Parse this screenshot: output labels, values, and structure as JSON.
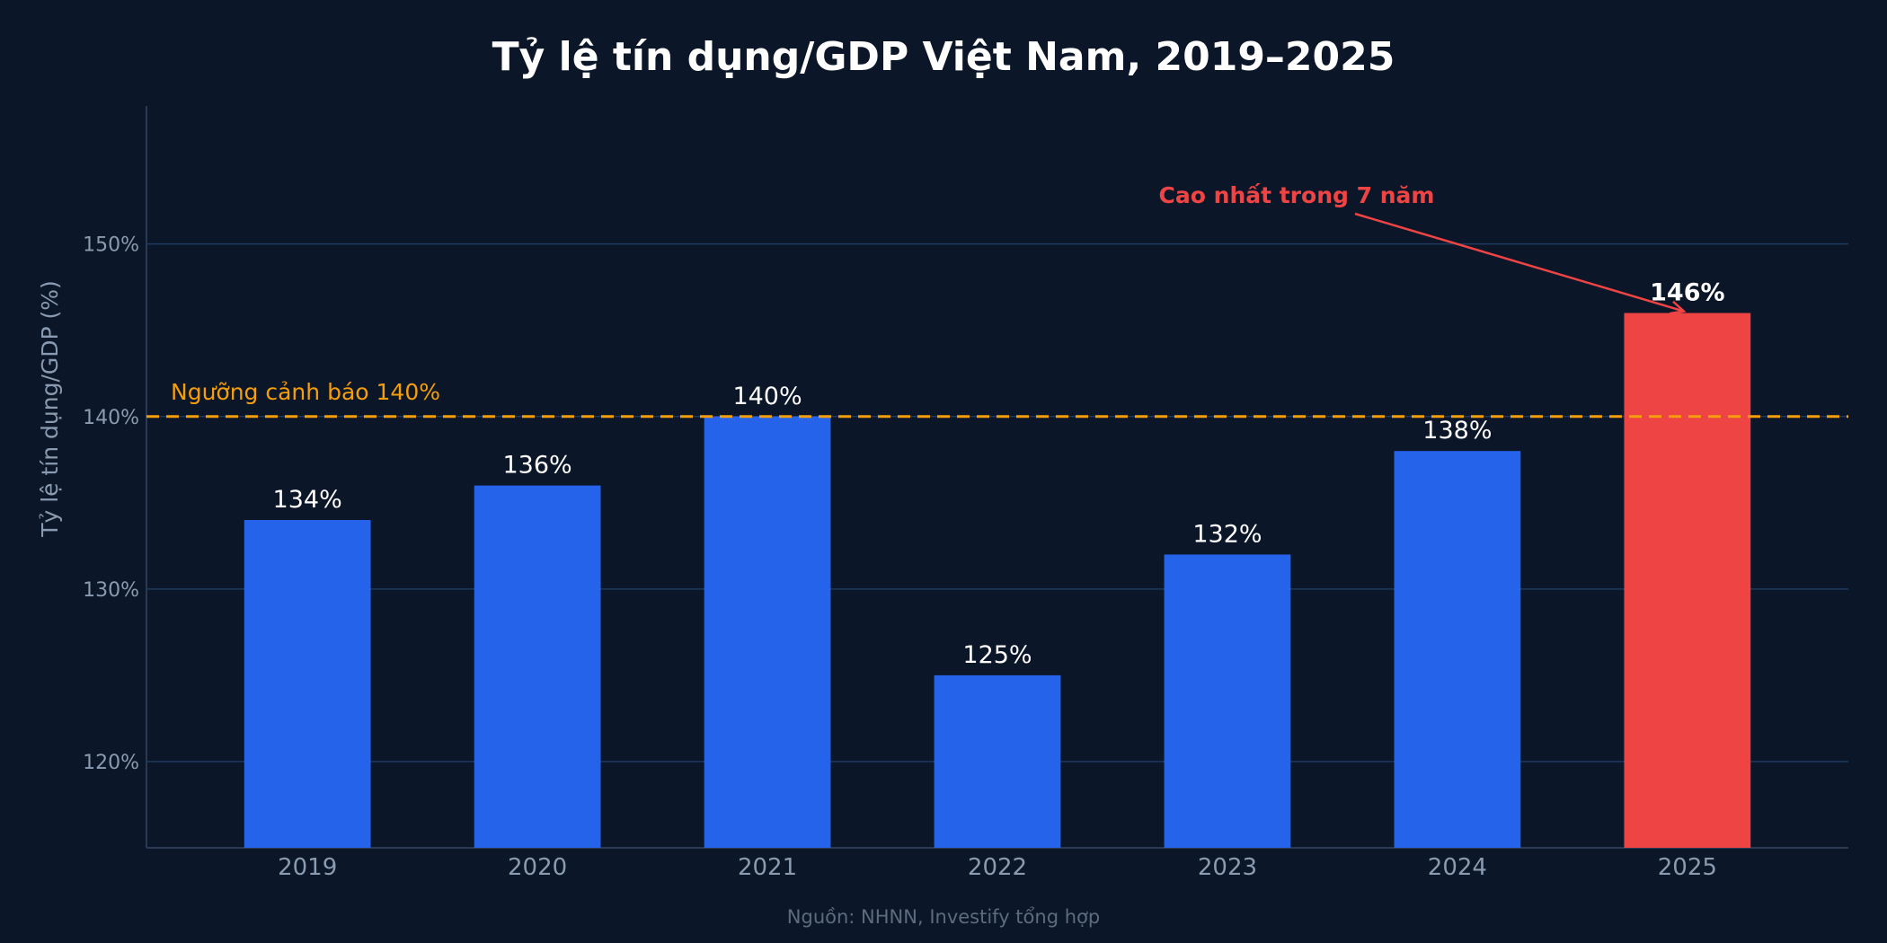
{
  "chart_data": {
    "type": "bar",
    "title": "Tỷ lệ tín dụng/GDP Việt Nam, 2019–2025",
    "xlabel": "",
    "ylabel": "Tỷ lệ tín dụng/GDP (%)",
    "categories": [
      "2019",
      "2020",
      "2021",
      "2022",
      "2023",
      "2024",
      "2025"
    ],
    "values": [
      134,
      136,
      140,
      125,
      132,
      138,
      146
    ],
    "data_labels": [
      "134%",
      "136%",
      "140%",
      "125%",
      "132%",
      "138%",
      "146%"
    ],
    "ylim": [
      115,
      158
    ],
    "yticks": [
      120,
      130,
      140,
      150
    ],
    "ytick_labels": [
      "120%",
      "130%",
      "140%",
      "150%"
    ],
    "grid": true,
    "bar_color": "#2563eb",
    "highlight_color": "#ef4444",
    "highlight_category": "2025",
    "threshold": {
      "value": 140,
      "label": "Ngưỡng cảnh báo 140%",
      "color": "#f59e0b"
    },
    "annotation": {
      "text": "Cao nhất trong 7 năm",
      "target_category": "2025",
      "color": "#ef4444"
    },
    "source": "Nguồn: NHNN, Investify tổng hợp"
  }
}
